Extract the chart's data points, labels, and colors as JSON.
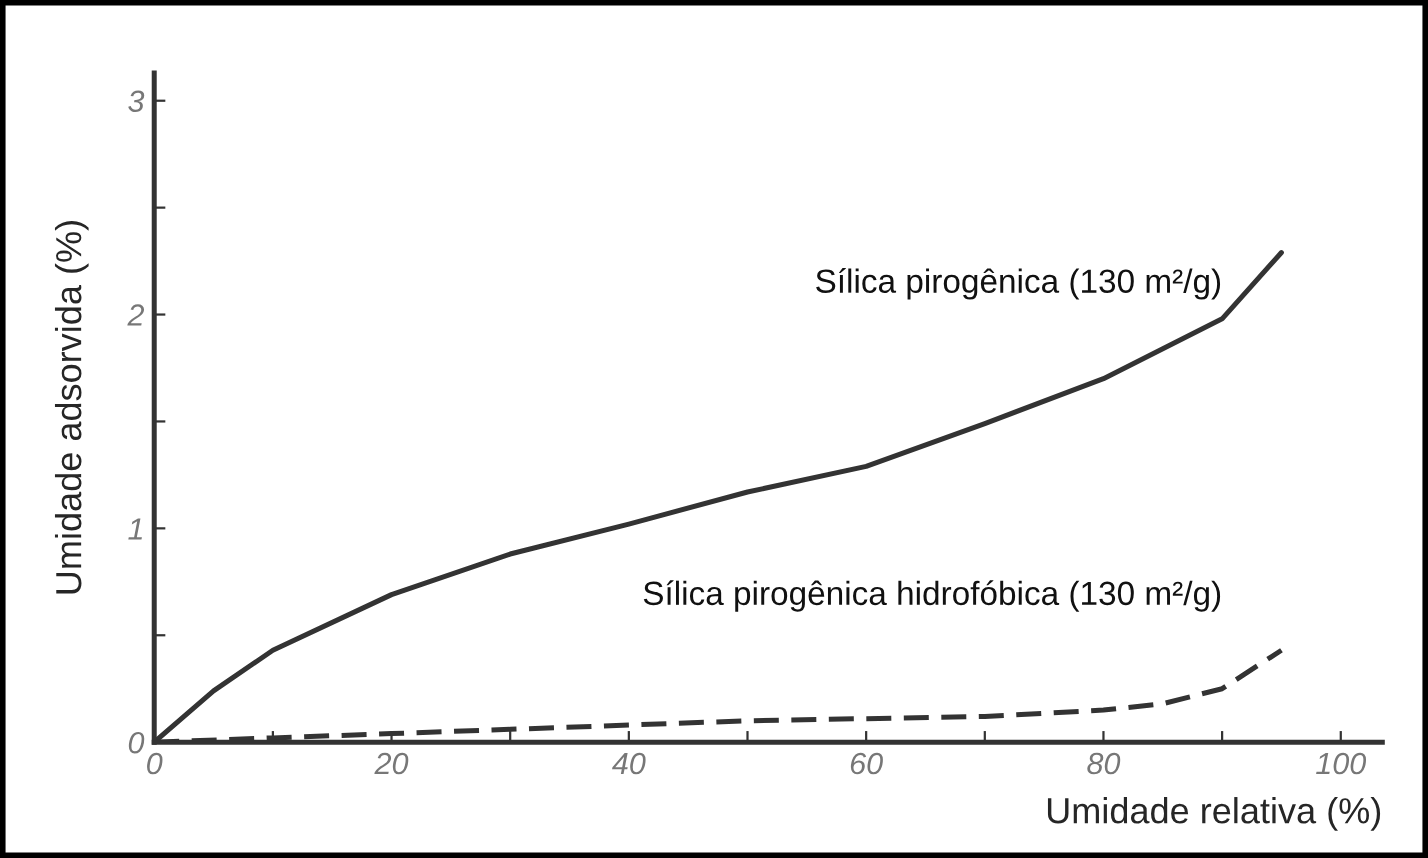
{
  "chart_data": {
    "type": "line",
    "xlabel": "Umidade relativa (%)",
    "ylabel": "Umidade adsorvida (%)",
    "xlim": [
      0,
      103.5
    ],
    "ylim": [
      0,
      3.13
    ],
    "xticks": [
      0,
      {
        "value": 10,
        "label": null
      },
      20,
      {
        "value": 30,
        "label": null
      },
      40,
      {
        "value": 50,
        "label": null
      },
      60,
      {
        "value": 70,
        "label": null
      },
      80,
      {
        "value": 90,
        "label": null
      },
      100
    ],
    "yticks": [
      0,
      {
        "value": 0.5,
        "label": null
      },
      1,
      {
        "value": 1.5,
        "label": null
      },
      2,
      {
        "value": 2.5,
        "label": null
      },
      3
    ],
    "grid": false,
    "legend": false,
    "marker": "none",
    "series": [
      {
        "name": "Sílica pirogênica (130 m²/g)",
        "color": "#333333",
        "line_style": "solid",
        "x": [
          0,
          5,
          10,
          20,
          30,
          40,
          50,
          60,
          70,
          80,
          85,
          90,
          95
        ],
        "values": [
          0,
          0.24,
          0.43,
          0.69,
          0.88,
          1.02,
          1.17,
          1.29,
          1.49,
          1.7,
          1.84,
          1.98,
          2.29
        ]
      },
      {
        "name": "Sílica pirogênica hidrofóbica (130 m²/g)",
        "color": "#333333",
        "line_style": "dashed",
        "x": [
          0,
          10,
          20,
          30,
          40,
          50,
          60,
          70,
          80,
          85,
          90,
          95
        ],
        "values": [
          0,
          0.02,
          0.04,
          0.06,
          0.08,
          0.1,
          0.11,
          0.12,
          0.15,
          0.18,
          0.25,
          0.43
        ]
      }
    ]
  }
}
